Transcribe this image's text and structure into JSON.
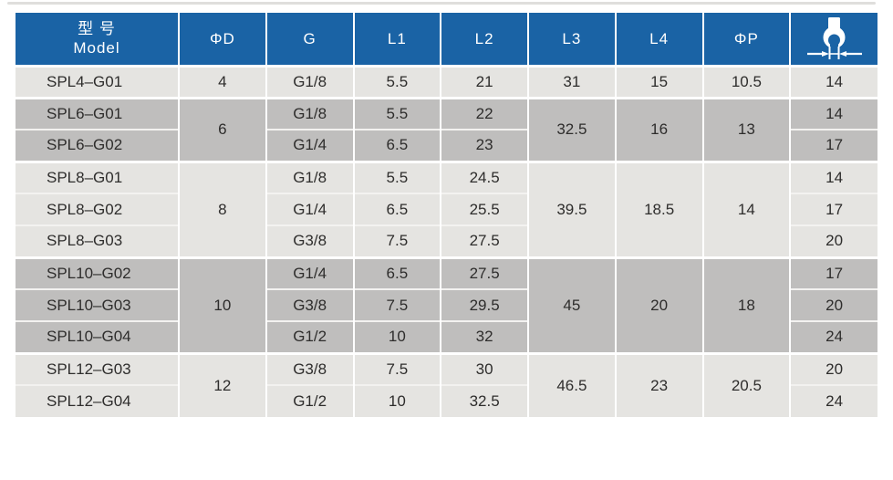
{
  "colors": {
    "header_bg": "#1a63a5",
    "header_text": "#ffffff",
    "row_light": "#e5e4e1",
    "row_dark": "#bfbebd",
    "body_text": "#2e2d2c",
    "grid_line": "#ffffff"
  },
  "table": {
    "header": {
      "model_cn": "型 号",
      "model_en": "Model",
      "cols": [
        "ΦD",
        "G",
        "L1",
        "L2",
        "L3",
        "L4",
        "ΦP"
      ],
      "icon": "wrench-across-flats"
    },
    "groups": [
      {
        "shade": "light",
        "d": "4",
        "l3": "31",
        "l4": "15",
        "p": "10.5",
        "rows": [
          {
            "model": "SPL4–G01",
            "g": "G1/8",
            "l1": "5.5",
            "l2": "21",
            "h": "14"
          }
        ]
      },
      {
        "shade": "dark",
        "d": "6",
        "l3": "32.5",
        "l4": "16",
        "p": "13",
        "rows": [
          {
            "model": "SPL6–G01",
            "g": "G1/8",
            "l1": "5.5",
            "l2": "22",
            "h": "14"
          },
          {
            "model": "SPL6–G02",
            "g": "G1/4",
            "l1": "6.5",
            "l2": "23",
            "h": "17"
          }
        ]
      },
      {
        "shade": "light",
        "d": "8",
        "l3": "39.5",
        "l4": "18.5",
        "p": "14",
        "rows": [
          {
            "model": "SPL8–G01",
            "g": "G1/8",
            "l1": "5.5",
            "l2": "24.5",
            "h": "14"
          },
          {
            "model": "SPL8–G02",
            "g": "G1/4",
            "l1": "6.5",
            "l2": "25.5",
            "h": "17"
          },
          {
            "model": "SPL8–G03",
            "g": "G3/8",
            "l1": "7.5",
            "l2": "27.5",
            "h": "20"
          }
        ]
      },
      {
        "shade": "dark",
        "d": "10",
        "l3": "45",
        "l4": "20",
        "p": "18",
        "rows": [
          {
            "model": "SPL10–G02",
            "g": "G1/4",
            "l1": "6.5",
            "l2": "27.5",
            "h": "17"
          },
          {
            "model": "SPL10–G03",
            "g": "G3/8",
            "l1": "7.5",
            "l2": "29.5",
            "h": "20"
          },
          {
            "model": "SPL10–G04",
            "g": "G1/2",
            "l1": "10",
            "l2": "32",
            "h": "24"
          }
        ]
      },
      {
        "shade": "light",
        "d": "12",
        "l3": "46.5",
        "l4": "23",
        "p": "20.5",
        "rows": [
          {
            "model": "SPL12–G03",
            "g": "G3/8",
            "l1": "7.5",
            "l2": "30",
            "h": "20"
          },
          {
            "model": "SPL12–G04",
            "g": "G1/2",
            "l1": "10",
            "l2": "32.5",
            "h": "24"
          }
        ]
      }
    ]
  }
}
